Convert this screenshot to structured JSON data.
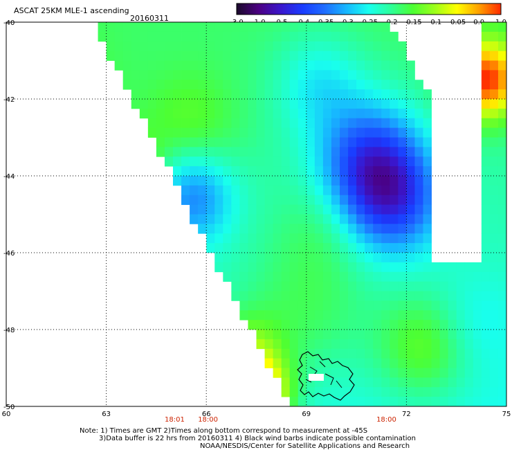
{
  "chart_data": {
    "type": "heatmap",
    "title": "ASCAT 25KM MLE-1 ascending",
    "date": "20160311",
    "x_ticks": [
      60,
      63,
      66,
      69,
      72,
      75
    ],
    "y_ticks": [
      -40,
      -42,
      -44,
      -46,
      -48,
      -50
    ],
    "x_range": [
      60,
      75
    ],
    "y_range": [
      -50,
      -40
    ],
    "grid": "dotted",
    "colorbar": {
      "labels": [
        "-3.0",
        "-1.0",
        "-0.5",
        "-0.4",
        "-0.35",
        "-0.3",
        "-0.25",
        "-0.2",
        "-0.15",
        "-0.1",
        "-0.05",
        "0.0",
        "1.0"
      ],
      "colors": [
        "#1a0a2a",
        "#4b0082",
        "#3a16cc",
        "#1a3cff",
        "#1f6dff",
        "#17b8ff",
        "#19ffee",
        "#2cff9a",
        "#4cff33",
        "#9dff1a",
        "#ffff00",
        "#ffa000",
        "#ff2a00"
      ],
      "position": "top-right"
    },
    "swath_time_labels": [
      {
        "text": "18:01",
        "x": 65.05
      },
      {
        "text": "18:00",
        "x": 66.05
      },
      {
        "text": "18:00",
        "x": 71.4
      }
    ],
    "notes": [
      "Note: 1) Times are GMT 2)Times along bottom correspond to measurement at -45S",
      "3)Data buffer is 22 hrs from 20160311 4) Black wind barbs indicate possible contamination",
      "NOAA/NESDIS/Center for Satellite Applications and Research"
    ]
  }
}
